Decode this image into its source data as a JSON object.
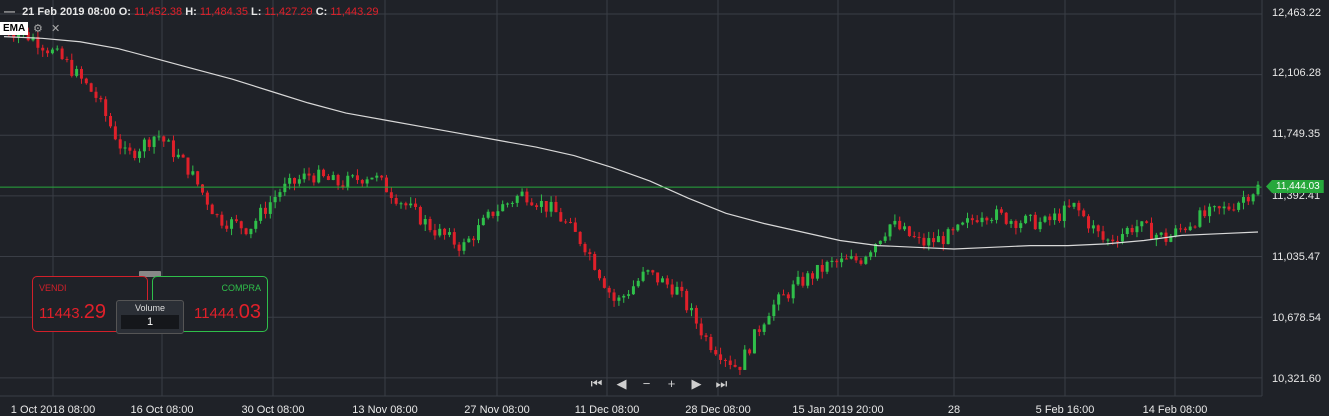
{
  "header": {
    "date": "21 Feb 2019 08:00",
    "o_label": "O:",
    "o_value": "11,452.38",
    "h_label": "H:",
    "h_value": "11,484.35",
    "l_label": "L:",
    "l_value": "11,427.29",
    "c_label": "C:",
    "c_value": "11,443.29",
    "dash": "—"
  },
  "indicator": {
    "name": "EMA",
    "settings_icon": "gear-icon",
    "close_icon": "close-icon",
    "close_glyph": "✕"
  },
  "y_axis": {
    "labels": [
      "12,463.22",
      "12,106.28",
      "11,749.35",
      "11,392.41",
      "11,035.47",
      "10,678.54",
      "10,321.60"
    ]
  },
  "x_axis": {
    "labels": [
      "1 Oct 2018 08:00",
      "16 Oct 08:00",
      "30 Oct 08:00",
      "13 Nov 08:00",
      "27 Nov 08:00",
      "11 Dec 08:00",
      "28 Dec 08:00",
      "15 Jan 2019 20:00",
      "28",
      "5 Feb 16:00",
      "14 Feb 08:00"
    ]
  },
  "current_price": "11,444.03",
  "trade": {
    "sell_label": "VENDI",
    "sell_main": "11443.",
    "sell_big": "29",
    "buy_label": "COMPRA",
    "buy_main": "11444.",
    "buy_big": "03",
    "volume_label": "Volume",
    "volume_value": "1"
  },
  "nav": {
    "first": "⏮",
    "prev": "◀",
    "zoom_out": "−",
    "zoom_in": "+",
    "next": "▶",
    "last": "⏭"
  },
  "colors": {
    "background": "#1f2228",
    "grid": "#3a3e46",
    "up": "#2fbf4a",
    "down": "#e0202a",
    "ema": "#d8d8d8",
    "price_line": "#27a83c"
  },
  "chart_data": {
    "type": "candlestick",
    "ylim": [
      10250,
      12463.22
    ],
    "series": [
      {
        "name": "EMA",
        "values": [
          12330,
          12320,
          12300,
          12260,
          12200,
          12140,
          12080,
          12010,
          11940,
          11880,
          11840,
          11800,
          11760,
          11720,
          11680,
          11630,
          11560,
          11480,
          11380,
          11290,
          11230,
          11180,
          11130,
          11100,
          11090,
          11080,
          11090,
          11100,
          11100,
          11110,
          11130,
          11160,
          11170,
          11180
        ]
      }
    ],
    "close": [
      12380,
      12320,
      12180,
      11980,
      11620,
      11760,
      11560,
      11260,
      11200,
      11420,
      11520,
      11460,
      11520,
      11360,
      11200,
      11090,
      11300,
      11410,
      11300,
      11100,
      10760,
      10940,
      10840,
      10540,
      10380,
      10720,
      10880,
      10990,
      11020,
      11230,
      11110,
      11160,
      11300,
      11250,
      11230,
      11330,
      11120,
      11220,
      11140,
      11260,
      11320,
      11444
    ]
  }
}
